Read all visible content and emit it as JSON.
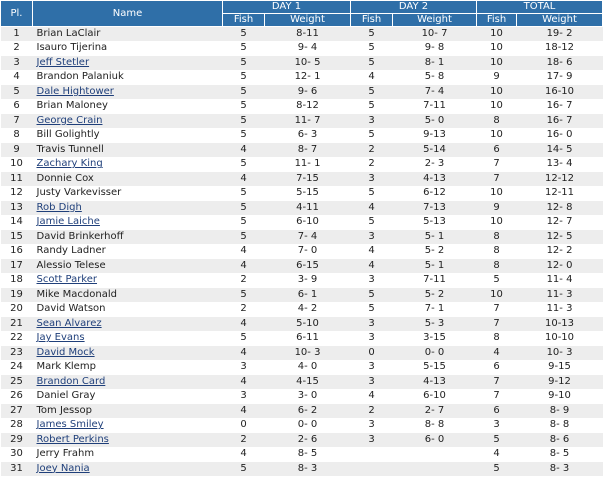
{
  "headers": {
    "place": "Pl.",
    "name": "Name",
    "day1": "DAY 1",
    "day2": "DAY 2",
    "total": "TOTAL",
    "fish": "Fish",
    "weight": "Weight"
  },
  "rows": [
    {
      "pl": "1",
      "name": "Brian LaClair",
      "link": false,
      "d1f": "5",
      "d1w": "8-11",
      "d2f": "5",
      "d2w": "10- 7",
      "tf": "10",
      "tw": "19- 2"
    },
    {
      "pl": "2",
      "name": "Isauro Tijerina",
      "link": false,
      "d1f": "5",
      "d1w": "9- 4",
      "d2f": "5",
      "d2w": "9- 8",
      "tf": "10",
      "tw": "18-12"
    },
    {
      "pl": "3",
      "name": "Jeff Stetler",
      "link": true,
      "d1f": "5",
      "d1w": "10- 5",
      "d2f": "5",
      "d2w": "8- 1",
      "tf": "10",
      "tw": "18- 6"
    },
    {
      "pl": "4",
      "name": "Brandon Palaniuk",
      "link": false,
      "d1f": "5",
      "d1w": "12- 1",
      "d2f": "4",
      "d2w": "5- 8",
      "tf": "9",
      "tw": "17- 9"
    },
    {
      "pl": "5",
      "name": "Dale Hightower",
      "link": true,
      "d1f": "5",
      "d1w": "9- 6",
      "d2f": "5",
      "d2w": "7- 4",
      "tf": "10",
      "tw": "16-10"
    },
    {
      "pl": "6",
      "name": "Brian Maloney",
      "link": false,
      "d1f": "5",
      "d1w": "8-12",
      "d2f": "5",
      "d2w": "7-11",
      "tf": "10",
      "tw": "16- 7"
    },
    {
      "pl": "7",
      "name": "George Crain",
      "link": true,
      "d1f": "5",
      "d1w": "11- 7",
      "d2f": "3",
      "d2w": "5- 0",
      "tf": "8",
      "tw": "16- 7"
    },
    {
      "pl": "8",
      "name": "Bill Golightly",
      "link": false,
      "d1f": "5",
      "d1w": "6- 3",
      "d2f": "5",
      "d2w": "9-13",
      "tf": "10",
      "tw": "16- 0"
    },
    {
      "pl": "9",
      "name": "Travis Tunnell",
      "link": false,
      "d1f": "4",
      "d1w": "8- 7",
      "d2f": "2",
      "d2w": "5-14",
      "tf": "6",
      "tw": "14- 5"
    },
    {
      "pl": "10",
      "name": "Zachary King",
      "link": true,
      "d1f": "5",
      "d1w": "11- 1",
      "d2f": "2",
      "d2w": "2- 3",
      "tf": "7",
      "tw": "13- 4"
    },
    {
      "pl": "11",
      "name": "Donnie Cox",
      "link": false,
      "d1f": "4",
      "d1w": "7-15",
      "d2f": "3",
      "d2w": "4-13",
      "tf": "7",
      "tw": "12-12"
    },
    {
      "pl": "12",
      "name": "Justy Varkevisser",
      "link": false,
      "d1f": "5",
      "d1w": "5-15",
      "d2f": "5",
      "d2w": "6-12",
      "tf": "10",
      "tw": "12-11"
    },
    {
      "pl": "13",
      "name": "Rob Digh",
      "link": true,
      "d1f": "5",
      "d1w": "4-11",
      "d2f": "4",
      "d2w": "7-13",
      "tf": "9",
      "tw": "12- 8"
    },
    {
      "pl": "14",
      "name": "Jamie Laiche",
      "link": true,
      "d1f": "5",
      "d1w": "6-10",
      "d2f": "5",
      "d2w": "5-13",
      "tf": "10",
      "tw": "12- 7"
    },
    {
      "pl": "15",
      "name": "David Brinkerhoff",
      "link": false,
      "d1f": "5",
      "d1w": "7- 4",
      "d2f": "3",
      "d2w": "5- 1",
      "tf": "8",
      "tw": "12- 5"
    },
    {
      "pl": "16",
      "name": "Randy Ladner",
      "link": false,
      "d1f": "4",
      "d1w": "7- 0",
      "d2f": "4",
      "d2w": "5- 2",
      "tf": "8",
      "tw": "12- 2"
    },
    {
      "pl": "17",
      "name": "Alessio Telese",
      "link": false,
      "d1f": "4",
      "d1w": "6-15",
      "d2f": "4",
      "d2w": "5- 1",
      "tf": "8",
      "tw": "12- 0"
    },
    {
      "pl": "18",
      "name": "Scott Parker",
      "link": true,
      "d1f": "2",
      "d1w": "3- 9",
      "d2f": "3",
      "d2w": "7-11",
      "tf": "5",
      "tw": "11- 4"
    },
    {
      "pl": "19",
      "name": "Mike Macdonald",
      "link": false,
      "d1f": "5",
      "d1w": "6- 1",
      "d2f": "5",
      "d2w": "5- 2",
      "tf": "10",
      "tw": "11- 3"
    },
    {
      "pl": "20",
      "name": "David Watson",
      "link": false,
      "d1f": "2",
      "d1w": "4- 2",
      "d2f": "5",
      "d2w": "7- 1",
      "tf": "7",
      "tw": "11- 3"
    },
    {
      "pl": "21",
      "name": "Sean Alvarez",
      "link": true,
      "d1f": "4",
      "d1w": "5-10",
      "d2f": "3",
      "d2w": "5- 3",
      "tf": "7",
      "tw": "10-13"
    },
    {
      "pl": "22",
      "name": "Jay Evans",
      "link": true,
      "d1f": "5",
      "d1w": "6-11",
      "d2f": "3",
      "d2w": "3-15",
      "tf": "8",
      "tw": "10-10"
    },
    {
      "pl": "23",
      "name": "David Mock",
      "link": true,
      "d1f": "4",
      "d1w": "10- 3",
      "d2f": "0",
      "d2w": "0- 0",
      "tf": "4",
      "tw": "10- 3"
    },
    {
      "pl": "24",
      "name": "Mark Klemp",
      "link": false,
      "d1f": "3",
      "d1w": "4- 0",
      "d2f": "3",
      "d2w": "5-15",
      "tf": "6",
      "tw": "9-15"
    },
    {
      "pl": "25",
      "name": "Brandon Card",
      "link": true,
      "d1f": "4",
      "d1w": "4-15",
      "d2f": "3",
      "d2w": "4-13",
      "tf": "7",
      "tw": "9-12"
    },
    {
      "pl": "26",
      "name": "Daniel Gray",
      "link": false,
      "d1f": "3",
      "d1w": "3- 0",
      "d2f": "4",
      "d2w": "6-10",
      "tf": "7",
      "tw": "9-10"
    },
    {
      "pl": "27",
      "name": "Tom Jessop",
      "link": false,
      "d1f": "4",
      "d1w": "6- 2",
      "d2f": "2",
      "d2w": "2- 7",
      "tf": "6",
      "tw": "8- 9"
    },
    {
      "pl": "28",
      "name": "James Smiley",
      "link": true,
      "d1f": "0",
      "d1w": "0- 0",
      "d2f": "3",
      "d2w": "8- 8",
      "tf": "3",
      "tw": "8- 8"
    },
    {
      "pl": "29",
      "name": "Robert Perkins",
      "link": true,
      "d1f": "2",
      "d1w": "2- 6",
      "d2f": "3",
      "d2w": "6- 0",
      "tf": "5",
      "tw": "8- 6"
    },
    {
      "pl": "30",
      "name": "Jerry Frahm",
      "link": false,
      "d1f": "4",
      "d1w": "8- 5",
      "d2f": "",
      "d2w": "",
      "tf": "4",
      "tw": "8- 5"
    },
    {
      "pl": "31",
      "name": "Joey Nania",
      "link": true,
      "d1f": "5",
      "d1w": "8- 3",
      "d2f": "",
      "d2w": "",
      "tf": "5",
      "tw": "8- 3"
    }
  ]
}
